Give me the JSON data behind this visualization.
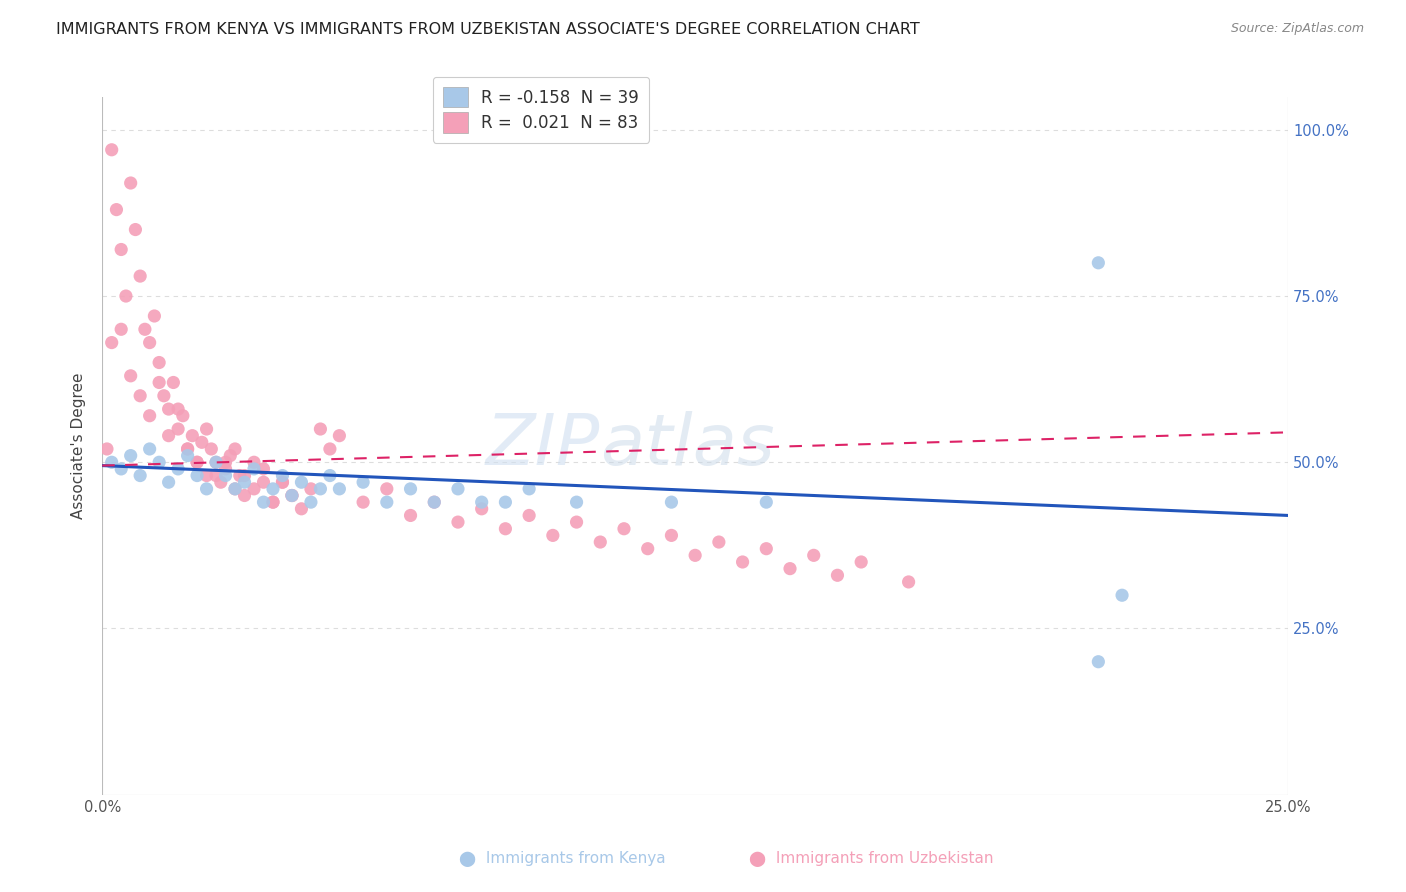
{
  "title": "IMMIGRANTS FROM KENYA VS IMMIGRANTS FROM UZBEKISTAN ASSOCIATE'S DEGREE CORRELATION CHART",
  "source": "Source: ZipAtlas.com",
  "ylabel": "Associate's Degree",
  "xlim": [
    0.0,
    0.25
  ],
  "ylim": [
    0.0,
    1.05
  ],
  "xticks": [
    0.0,
    0.05,
    0.1,
    0.15,
    0.2,
    0.25
  ],
  "xticklabels": [
    "0.0%",
    "",
    "",
    "",
    "",
    "25.0%"
  ],
  "yticks": [
    0.0,
    0.25,
    0.5,
    0.75,
    1.0
  ],
  "yticklabels": [
    "",
    "25.0%",
    "50.0%",
    "75.0%",
    "100.0%"
  ],
  "legend1_label": "R = -0.158  N = 39",
  "legend2_label": "R =  0.021  N = 83",
  "kenya_color": "#a8c8e8",
  "uzbekistan_color": "#f4a0b8",
  "kenya_line_color": "#2255bb",
  "uzbekistan_line_color": "#dd2266",
  "kenya_scatter_x": [
    0.002,
    0.004,
    0.006,
    0.008,
    0.01,
    0.012,
    0.014,
    0.016,
    0.018,
    0.02,
    0.022,
    0.024,
    0.026,
    0.028,
    0.03,
    0.032,
    0.034,
    0.036,
    0.038,
    0.04,
    0.042,
    0.044,
    0.046,
    0.048,
    0.05,
    0.055,
    0.06,
    0.065,
    0.07,
    0.075,
    0.08,
    0.085,
    0.09,
    0.1,
    0.12,
    0.14,
    0.21,
    0.215,
    0.21
  ],
  "kenya_scatter_y": [
    0.5,
    0.49,
    0.51,
    0.48,
    0.52,
    0.5,
    0.47,
    0.49,
    0.51,
    0.48,
    0.46,
    0.5,
    0.48,
    0.46,
    0.47,
    0.49,
    0.44,
    0.46,
    0.48,
    0.45,
    0.47,
    0.44,
    0.46,
    0.48,
    0.46,
    0.47,
    0.44,
    0.46,
    0.44,
    0.46,
    0.44,
    0.44,
    0.46,
    0.44,
    0.44,
    0.44,
    0.8,
    0.3,
    0.2
  ],
  "uzbekistan_scatter_x": [
    0.001,
    0.002,
    0.003,
    0.004,
    0.005,
    0.006,
    0.007,
    0.008,
    0.009,
    0.01,
    0.011,
    0.012,
    0.013,
    0.014,
    0.015,
    0.016,
    0.017,
    0.018,
    0.019,
    0.02,
    0.021,
    0.022,
    0.023,
    0.024,
    0.025,
    0.026,
    0.027,
    0.028,
    0.029,
    0.03,
    0.032,
    0.034,
    0.036,
    0.038,
    0.04,
    0.042,
    0.044,
    0.046,
    0.048,
    0.05,
    0.002,
    0.004,
    0.006,
    0.008,
    0.01,
    0.012,
    0.014,
    0.016,
    0.018,
    0.02,
    0.022,
    0.024,
    0.026,
    0.028,
    0.03,
    0.032,
    0.034,
    0.036,
    0.038,
    0.04,
    0.055,
    0.06,
    0.065,
    0.07,
    0.075,
    0.08,
    0.085,
    0.09,
    0.095,
    0.1,
    0.105,
    0.11,
    0.115,
    0.12,
    0.125,
    0.13,
    0.135,
    0.14,
    0.145,
    0.15,
    0.155,
    0.16,
    0.17
  ],
  "uzbekistan_scatter_y": [
    0.52,
    0.97,
    0.88,
    0.82,
    0.75,
    0.92,
    0.85,
    0.78,
    0.7,
    0.68,
    0.72,
    0.65,
    0.6,
    0.58,
    0.62,
    0.55,
    0.57,
    0.52,
    0.54,
    0.5,
    0.53,
    0.48,
    0.52,
    0.5,
    0.47,
    0.49,
    0.51,
    0.46,
    0.48,
    0.45,
    0.5,
    0.47,
    0.44,
    0.47,
    0.45,
    0.43,
    0.46,
    0.55,
    0.52,
    0.54,
    0.68,
    0.7,
    0.63,
    0.6,
    0.57,
    0.62,
    0.54,
    0.58,
    0.52,
    0.5,
    0.55,
    0.48,
    0.5,
    0.52,
    0.48,
    0.46,
    0.49,
    0.44,
    0.47,
    0.45,
    0.44,
    0.46,
    0.42,
    0.44,
    0.41,
    0.43,
    0.4,
    0.42,
    0.39,
    0.41,
    0.38,
    0.4,
    0.37,
    0.39,
    0.36,
    0.38,
    0.35,
    0.37,
    0.34,
    0.36,
    0.33,
    0.35,
    0.32
  ],
  "kenya_trendline_x": [
    0.0,
    0.25
  ],
  "kenya_trendline_y": [
    0.495,
    0.42
  ],
  "uzbekistan_trendline_x": [
    0.0,
    0.25
  ],
  "uzbekistan_trendline_y": [
    0.495,
    0.545
  ],
  "background_color": "#ffffff",
  "grid_color": "#dddddd",
  "title_fontsize": 11.5,
  "axis_label_fontsize": 11,
  "tick_fontsize": 10.5,
  "legend_fontsize": 12
}
